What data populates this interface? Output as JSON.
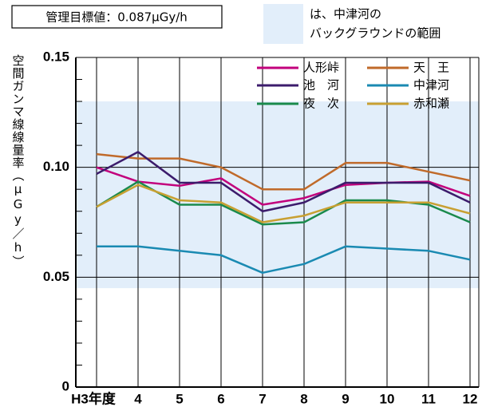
{
  "chart_data": {
    "type": "line",
    "annotation_box": "管理目標値：0.087μGy/h",
    "band_note": [
      "は、中津河の",
      "バックグラウンドの範囲"
    ],
    "background_band": {
      "range": [
        0.045,
        0.13
      ],
      "color": "#e2eefa"
    },
    "y_label": "空間ガンマ線線量率（μGy／h）",
    "categories": [
      "H3年度",
      "4",
      "5",
      "6",
      "7",
      "8",
      "9",
      "10",
      "11",
      "12"
    ],
    "series": [
      {
        "name": "人形峠",
        "color": "#c2007c",
        "values": [
          0.1,
          0.0935,
          0.0916,
          0.095,
          0.083,
          0.086,
          0.092,
          0.093,
          0.0935,
          0.087
        ]
      },
      {
        "name": "天　王",
        "color": "#c06a2a",
        "values": [
          0.106,
          0.104,
          0.104,
          0.1,
          0.09,
          0.09,
          0.102,
          0.102,
          0.098,
          0.094
        ]
      },
      {
        "name": "池　河",
        "color": "#3c1c6c",
        "values": [
          0.097,
          0.107,
          0.093,
          0.093,
          0.08,
          0.084,
          0.093,
          0.093,
          0.093,
          0.084
        ]
      },
      {
        "name": "中津河",
        "color": "#1a8ab2",
        "values": [
          0.064,
          0.064,
          0.062,
          0.06,
          0.052,
          0.056,
          0.064,
          0.063,
          0.062,
          0.058
        ]
      },
      {
        "name": "夜　次",
        "color": "#1a8a4c",
        "values": [
          0.082,
          0.0935,
          0.083,
          0.083,
          0.074,
          0.075,
          0.085,
          0.085,
          0.083,
          0.075
        ]
      },
      {
        "name": "赤和瀬",
        "color": "#c8a032",
        "values": [
          0.082,
          0.092,
          0.085,
          0.084,
          0.075,
          0.078,
          0.084,
          0.084,
          0.084,
          0.079
        ]
      }
    ],
    "ylim": [
      0,
      0.15
    ],
    "yticks": [
      0,
      0.05,
      {
        "value": 0.1,
        "label": "0.10"
      },
      0.15
    ],
    "yminorticks": [
      0.01,
      0.02,
      0.03,
      0.04,
      0.06,
      0.07,
      0.08,
      0.09,
      0.11,
      0.12,
      0.13,
      0.14
    ],
    "grid": true
  }
}
